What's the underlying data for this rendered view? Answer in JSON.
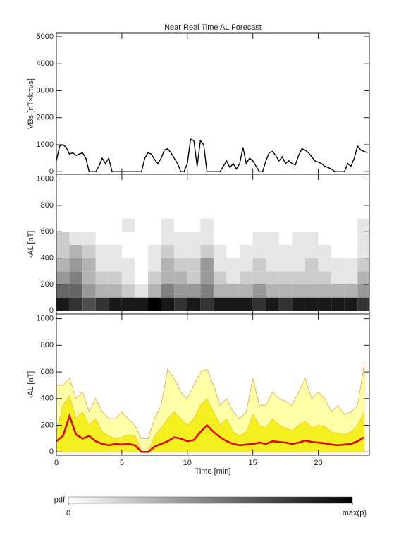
{
  "chart_data": [
    {
      "type": "line",
      "title": "Near Real Time AL Forecast",
      "ylabel": "VBs [nT×km/s]",
      "color": "#000000",
      "xlim": [
        0,
        23.9
      ],
      "ylim": [
        -100,
        5130
      ],
      "yticks": [
        0,
        1000,
        2000,
        3000,
        4000,
        5000
      ],
      "x": [
        0,
        0.25,
        0.5,
        0.75,
        1,
        1.25,
        1.5,
        1.75,
        2,
        2.25,
        2.5,
        2.75,
        3,
        3.25,
        3.5,
        3.75,
        4,
        4.25,
        4.5,
        4.75,
        5,
        5.25,
        5.5,
        5.75,
        6,
        6.25,
        6.5,
        6.75,
        7,
        7.25,
        7.5,
        7.75,
        8,
        8.25,
        8.5,
        8.75,
        9,
        9.25,
        9.5,
        9.75,
        10,
        10.25,
        10.5,
        10.75,
        11,
        11.25,
        11.5,
        11.75,
        12,
        12.25,
        12.5,
        12.75,
        13,
        13.25,
        13.5,
        13.75,
        14,
        14.25,
        14.5,
        14.75,
        15,
        15.25,
        15.5,
        15.75,
        16,
        16.25,
        16.5,
        16.75,
        17,
        17.25,
        17.5,
        17.75,
        18,
        18.25,
        18.5,
        18.75,
        19,
        19.25,
        19.5,
        19.75,
        20,
        20.25,
        20.5,
        20.75,
        21,
        21.25,
        21.5,
        21.75,
        22,
        22.25,
        22.5,
        22.75,
        23,
        23.25,
        23.5,
        23.75
      ],
      "y": [
        400,
        950,
        1000,
        900,
        650,
        700,
        600,
        650,
        700,
        500,
        0,
        0,
        0,
        200,
        500,
        300,
        500,
        0,
        0,
        0,
        0,
        0,
        0,
        0,
        0,
        0,
        0,
        500,
        700,
        650,
        450,
        300,
        500,
        800,
        850,
        700,
        500,
        300,
        0,
        0,
        300,
        1200,
        1150,
        200,
        1150,
        1000,
        0,
        0,
        0,
        0,
        0,
        200,
        400,
        150,
        300,
        100,
        300,
        900,
        300,
        500,
        400,
        200,
        0,
        0,
        400,
        700,
        750,
        600,
        400,
        550,
        300,
        400,
        300,
        250,
        600,
        850,
        800,
        700,
        550,
        400,
        350,
        300,
        200,
        150,
        100,
        0,
        0,
        0,
        0,
        300,
        200,
        500,
        950,
        800,
        750,
        700
      ]
    },
    {
      "type": "heatmap",
      "ylabel": "-AL [nT]",
      "xlim": [
        0,
        23.9
      ],
      "ylim": [
        -25,
        1035
      ],
      "yticks": [
        0,
        200,
        400,
        600,
        800,
        1000
      ],
      "x_edges": [
        0,
        1,
        2,
        3,
        4,
        5,
        6,
        7,
        8,
        9,
        10,
        11,
        12,
        13,
        14,
        15,
        16,
        17,
        18,
        19,
        20,
        21,
        22,
        23,
        23.9
      ],
      "y_edges": [
        0,
        100,
        200,
        300,
        400,
        500,
        600,
        700
      ],
      "z": [
        [
          0.9,
          0.8,
          0.7,
          0.8,
          0.9,
          0.9,
          0.9,
          1,
          0.9,
          0.8,
          0.9,
          0.8,
          0.9,
          0.9,
          0.9,
          0.8,
          0.9,
          0.8,
          0.9,
          0.9,
          0.9,
          0.9,
          0.9,
          0.8
        ],
        [
          0.6,
          0.6,
          0.4,
          0.3,
          0.3,
          0.2,
          0.1,
          0.3,
          0.5,
          0.4,
          0.4,
          0.5,
          0.3,
          0.3,
          0.3,
          0.4,
          0.3,
          0.3,
          0.3,
          0.3,
          0.3,
          0.3,
          0.3,
          0.4
        ],
        [
          0.4,
          0.5,
          0.3,
          0.2,
          0.2,
          0.1,
          0,
          0.2,
          0.3,
          0.3,
          0.2,
          0.4,
          0.2,
          0.1,
          0.2,
          0.2,
          0.2,
          0.2,
          0.2,
          0.2,
          0.2,
          0.1,
          0.1,
          0.3
        ],
        [
          0.3,
          0.4,
          0.3,
          0.1,
          0.1,
          0.1,
          0,
          0.1,
          0.3,
          0.2,
          0.2,
          0.4,
          0.1,
          0.1,
          0.1,
          0.2,
          0.1,
          0.1,
          0.1,
          0.2,
          0.1,
          0.1,
          0.1,
          0.2
        ],
        [
          0.2,
          0.3,
          0.2,
          0.1,
          0.1,
          0,
          0,
          0.1,
          0.2,
          0.1,
          0.1,
          0.2,
          0.1,
          0,
          0.1,
          0.1,
          0.1,
          0.1,
          0.1,
          0.1,
          0.1,
          0,
          0,
          0.1
        ],
        [
          0.2,
          0.1,
          0.1,
          0,
          0,
          0,
          0,
          0,
          0.1,
          0.1,
          0.1,
          0.1,
          0,
          0,
          0,
          0.1,
          0.1,
          0,
          0.1,
          0.1,
          0,
          0,
          0,
          0.1
        ],
        [
          0,
          0,
          0,
          0,
          0,
          0.1,
          0,
          0,
          0.1,
          0,
          0,
          0.1,
          0,
          0,
          0,
          0,
          0,
          0,
          0,
          0,
          0,
          0,
          0,
          0.1
        ]
      ]
    },
    {
      "type": "band",
      "ylabel": "-AL [nT]",
      "xlabel": "Time [min]",
      "xlim": [
        0,
        23.9
      ],
      "ylim": [
        -25,
        1035
      ],
      "yticks": [
        0,
        200,
        400,
        600,
        800,
        1000
      ],
      "xticks": [
        0,
        5,
        10,
        15,
        20
      ],
      "x": [
        0,
        0.5,
        1,
        1.5,
        2,
        2.5,
        3,
        3.5,
        4,
        4.5,
        5,
        5.5,
        6,
        6.5,
        7,
        7.5,
        8,
        8.5,
        9,
        9.5,
        10,
        10.5,
        11,
        11.5,
        12,
        12.5,
        13,
        13.5,
        14,
        14.5,
        15,
        15.5,
        16,
        16.5,
        17,
        17.5,
        18,
        18.5,
        19,
        19.5,
        20,
        20.5,
        21,
        21.5,
        22,
        22.5,
        23,
        23.5
      ],
      "series": [
        {
          "style": "area",
          "color": "#ffffa8",
          "edge": "#f0a040",
          "values": [
            500,
            500,
            550,
            400,
            450,
            300,
            400,
            300,
            250,
            250,
            300,
            250,
            200,
            100,
            100,
            250,
            350,
            620,
            550,
            450,
            400,
            500,
            600,
            620,
            500,
            350,
            400,
            300,
            250,
            300,
            550,
            350,
            350,
            450,
            400,
            380,
            350,
            450,
            550,
            400,
            450,
            400,
            300,
            350,
            280,
            300,
            350,
            650
          ]
        },
        {
          "style": "area",
          "color": "#f4f020",
          "edge": "#f0c030",
          "values": [
            150,
            350,
            420,
            250,
            300,
            200,
            250,
            150,
            120,
            100,
            110,
            130,
            120,
            0,
            0,
            120,
            180,
            250,
            300,
            250,
            200,
            250,
            350,
            400,
            300,
            200,
            250,
            150,
            120,
            150,
            280,
            200,
            180,
            250,
            200,
            180,
            160,
            200,
            230,
            180,
            200,
            190,
            150,
            140,
            130,
            150,
            200,
            300
          ]
        },
        {
          "style": "line",
          "color": "#e00000",
          "values": [
            80,
            120,
            270,
            130,
            100,
            120,
            80,
            60,
            50,
            60,
            55,
            60,
            50,
            0,
            0,
            40,
            60,
            80,
            110,
            100,
            80,
            90,
            150,
            200,
            150,
            110,
            80,
            60,
            50,
            55,
            60,
            70,
            60,
            80,
            75,
            70,
            60,
            70,
            85,
            75,
            70,
            65,
            55,
            50,
            55,
            60,
            80,
            110
          ]
        }
      ]
    },
    {
      "type": "colorbar",
      "label": "pdf",
      "range": [
        0,
        1
      ],
      "ticks": [
        0,
        {
          "value": 1,
          "label": "max(p)"
        }
      ]
    }
  ]
}
